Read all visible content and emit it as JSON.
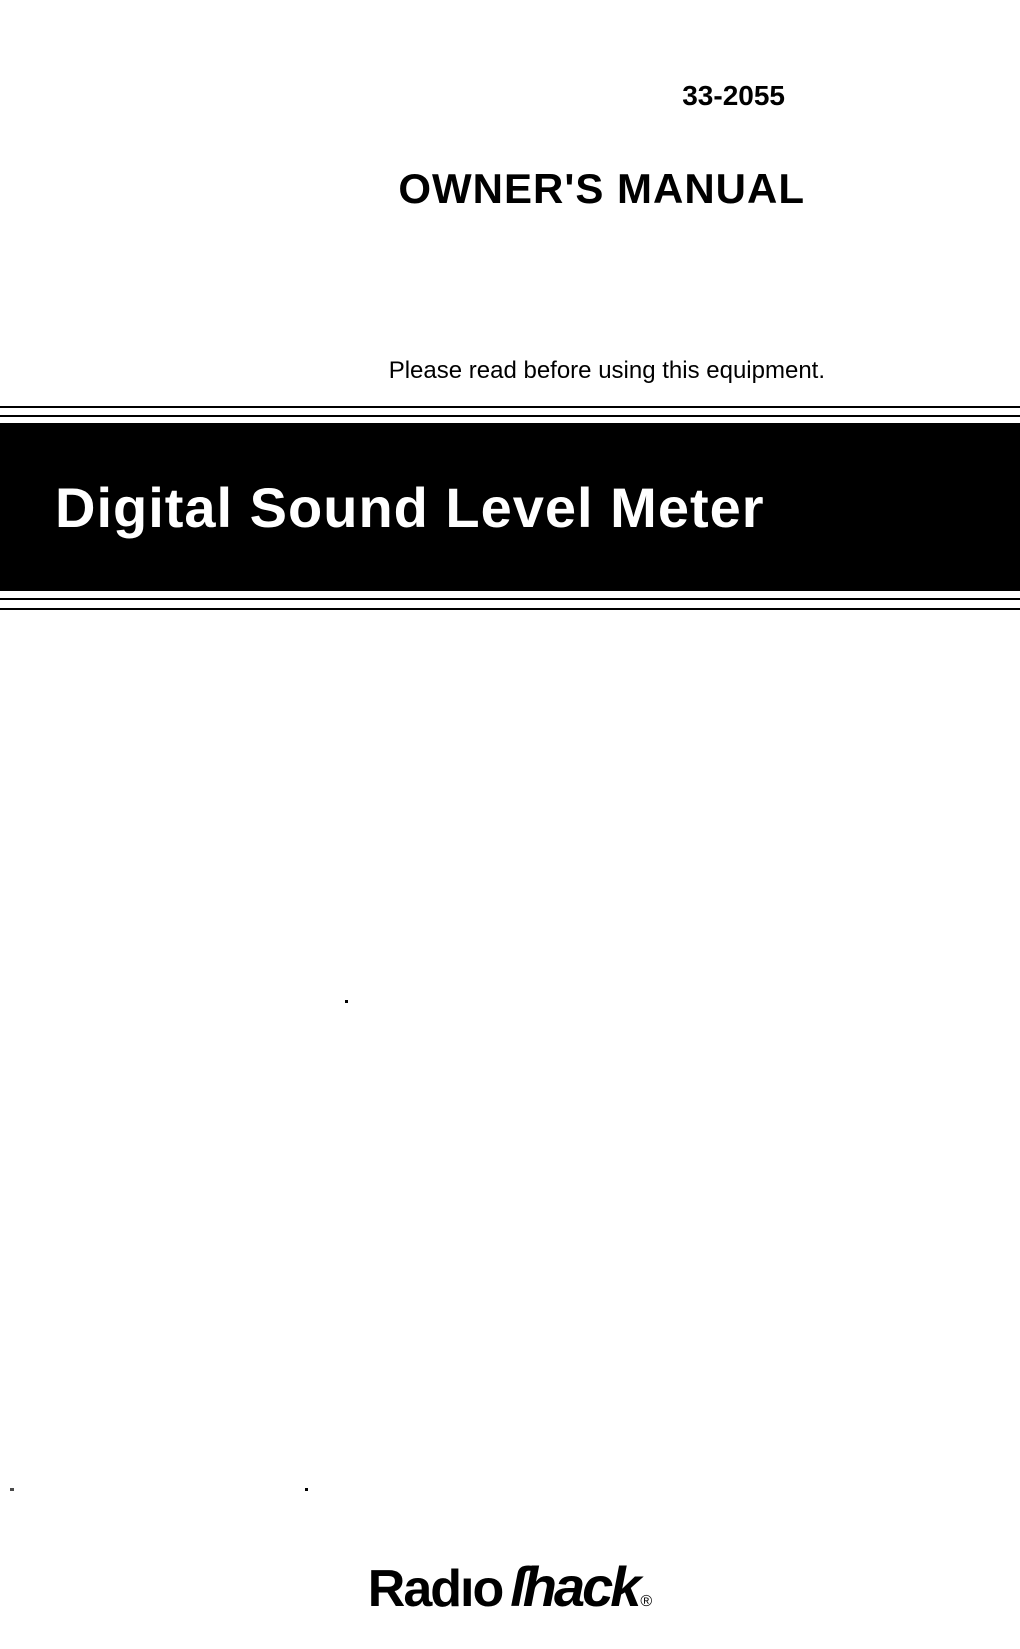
{
  "header": {
    "model_number": "33-2055",
    "title": "OWNER'S MANUAL",
    "instruction": "Please read before using this equipment."
  },
  "banner": {
    "product_name": "Digital Sound Level Meter",
    "background_color": "#000000",
    "text_color": "#ffffff"
  },
  "footer": {
    "brand_part1": "Radıo",
    "brand_part2": "ſhack",
    "registered_mark": "®"
  },
  "styling": {
    "page_background": "#ffffff",
    "text_color": "#000000",
    "rule_color": "#000000",
    "model_number_fontsize": 28,
    "manual_title_fontsize": 42,
    "instruction_fontsize": 24,
    "banner_title_fontsize": 56,
    "logo_fontsize": 52
  }
}
